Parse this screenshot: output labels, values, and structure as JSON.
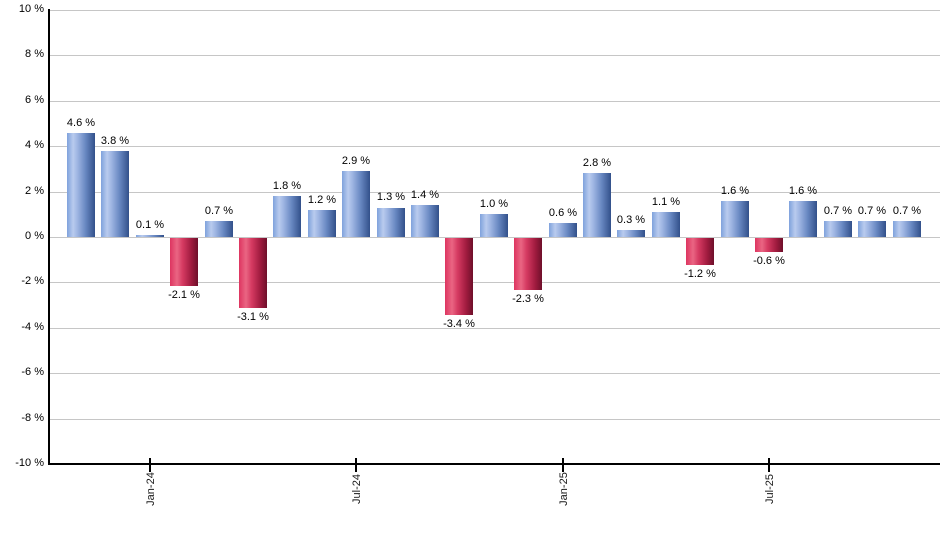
{
  "chart_data": {
    "type": "bar",
    "title": "",
    "xlabel": "",
    "ylabel": "",
    "grid": true,
    "legend": null,
    "ylim": [
      -10,
      10
    ],
    "ytick_step": 2,
    "ytick_values": [
      10,
      8,
      6,
      4,
      2,
      0,
      -2,
      -4,
      -6,
      -8,
      -10
    ],
    "ytick_labels": [
      "10 %",
      "8 %",
      "6 %",
      "4 %",
      "2 %",
      "0 %",
      "-2 %",
      "-4 %",
      "-6 %",
      "-8 %",
      "-10 %"
    ],
    "values": [
      4.6,
      3.8,
      0.1,
      -2.1,
      0.7,
      -3.1,
      1.8,
      1.2,
      2.9,
      1.3,
      1.4,
      -3.4,
      1.0,
      -2.3,
      0.6,
      2.8,
      0.3,
      1.1,
      -1.2,
      1.6,
      -0.6,
      1.6,
      0.7,
      0.7,
      0.7
    ],
    "bar_labels": [
      "4.6 %",
      "3.8 %",
      "0.1 %",
      "-2.1 %",
      "0.7 %",
      "-3.1 %",
      "1.8 %",
      "1.2 %",
      "2.9 %",
      "1.3 %",
      "1.4 %",
      "-3.4 %",
      "1.0 %",
      "-2.3 %",
      "0.6 %",
      "2.8 %",
      "0.3 %",
      "1.1 %",
      "-1.2 %",
      "1.6 %",
      "-0.6 %",
      "1.6 %",
      "0.7 %",
      "0.7 %",
      "0.7 %"
    ],
    "x_tick_labels": [
      {
        "index": 2,
        "label": "Jan-24"
      },
      {
        "index": 8,
        "label": "Jul-24"
      },
      {
        "index": 14,
        "label": "Jan-25"
      },
      {
        "index": 20,
        "label": "Jul-25"
      }
    ],
    "colors": {
      "positive_bar_light": "#b9cbee",
      "positive_bar_dark": "#32508a",
      "negative_bar_light": "#ea6583",
      "negative_bar_dark": "#6e0f2a",
      "gridline": "#c6c6c6",
      "axis": "#000000",
      "label_text": "#000000"
    }
  }
}
